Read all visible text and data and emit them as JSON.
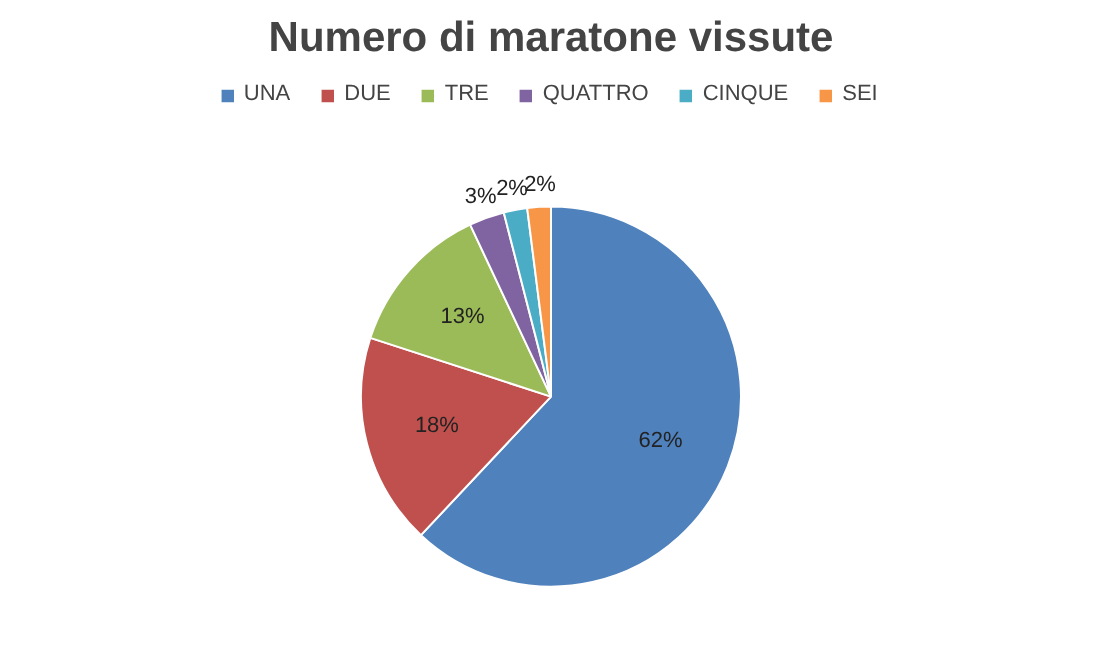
{
  "chart_data": {
    "type": "pie",
    "title": "Numero di maratone vissute",
    "categories": [
      "UNA",
      "DUE",
      "TRE",
      "QUATTRO",
      "CINQUE",
      "SEI"
    ],
    "values": [
      62,
      18,
      13,
      3,
      2,
      2
    ],
    "colors": [
      "#4f81bd",
      "#c0504d",
      "#9bbb59",
      "#8064a2",
      "#4bacc6",
      "#f79646"
    ],
    "value_labels": [
      "62%",
      "18%",
      "13%",
      "3%",
      "2%",
      "2%"
    ],
    "legend": "top"
  }
}
